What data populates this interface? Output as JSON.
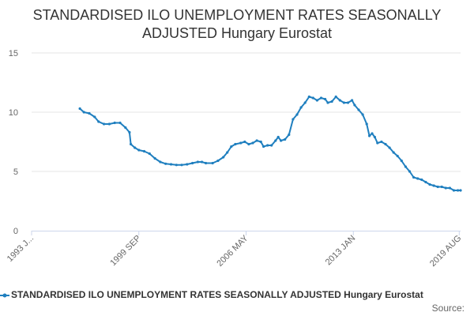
{
  "chart_data": {
    "type": "line",
    "title_lines": [
      "STANDARDISED ILO UNEMPLOYMENT RATES SEASONALLY",
      "ADJUSTED Hungary Eurostat"
    ],
    "xlabel": "",
    "ylabel": "",
    "x_range": [
      "1993-01",
      "2019-09"
    ],
    "ylim": [
      0,
      15
    ],
    "y_ticks": [
      0,
      5,
      10,
      15
    ],
    "x_ticks": [
      {
        "date": "1993-01",
        "label": "1993 J..."
      },
      {
        "date": "1999-09",
        "label": "1999 SEP"
      },
      {
        "date": "2006-05",
        "label": "2006 MAY"
      },
      {
        "date": "2013-01",
        "label": "2013 JAN"
      },
      {
        "date": "2019-08",
        "label": "2019 AUG"
      }
    ],
    "grid": "horizontal",
    "legend_position": "bottom-left",
    "series": [
      {
        "name": "STANDARDISED ILO UNEMPLOYMENT RATES SEASONALLY ADJUSTED Hungary Eurostat",
        "color": "#1f7fbf",
        "points": [
          [
            "1996-01",
            10.3
          ],
          [
            "1996-04",
            10.0
          ],
          [
            "1996-08",
            9.9
          ],
          [
            "1996-12",
            9.6
          ],
          [
            "1997-03",
            9.2
          ],
          [
            "1997-07",
            9.0
          ],
          [
            "1997-11",
            9.0
          ],
          [
            "1998-03",
            9.1
          ],
          [
            "1998-07",
            9.1
          ],
          [
            "1998-11",
            8.7
          ],
          [
            "1999-02",
            8.3
          ],
          [
            "1999-03",
            7.3
          ],
          [
            "1999-06",
            7.0
          ],
          [
            "1999-09",
            6.8
          ],
          [
            "2000-01",
            6.7
          ],
          [
            "2000-05",
            6.5
          ],
          [
            "2000-09",
            6.1
          ],
          [
            "2001-01",
            5.8
          ],
          [
            "2001-05",
            5.65
          ],
          [
            "2001-09",
            5.6
          ],
          [
            "2002-01",
            5.55
          ],
          [
            "2002-05",
            5.55
          ],
          [
            "2002-09",
            5.6
          ],
          [
            "2003-01",
            5.7
          ],
          [
            "2003-05",
            5.8
          ],
          [
            "2003-08",
            5.8
          ],
          [
            "2003-11",
            5.7
          ],
          [
            "2004-04",
            5.7
          ],
          [
            "2004-08",
            5.9
          ],
          [
            "2004-12",
            6.2
          ],
          [
            "2005-03",
            6.6
          ],
          [
            "2005-06",
            7.1
          ],
          [
            "2005-09",
            7.3
          ],
          [
            "2006-01",
            7.4
          ],
          [
            "2006-04",
            7.5
          ],
          [
            "2006-07",
            7.3
          ],
          [
            "2006-10",
            7.4
          ],
          [
            "2007-01",
            7.6
          ],
          [
            "2007-04",
            7.5
          ],
          [
            "2007-06",
            7.1
          ],
          [
            "2007-09",
            7.2
          ],
          [
            "2007-12",
            7.2
          ],
          [
            "2008-03",
            7.6
          ],
          [
            "2008-05",
            7.9
          ],
          [
            "2008-07",
            7.6
          ],
          [
            "2008-10",
            7.7
          ],
          [
            "2009-01",
            8.1
          ],
          [
            "2009-04",
            9.4
          ],
          [
            "2009-07",
            9.8
          ],
          [
            "2009-10",
            10.4
          ],
          [
            "2010-01",
            10.8
          ],
          [
            "2010-04",
            11.3
          ],
          [
            "2010-07",
            11.2
          ],
          [
            "2010-10",
            11.0
          ],
          [
            "2011-01",
            11.2
          ],
          [
            "2011-04",
            11.1
          ],
          [
            "2011-06",
            10.8
          ],
          [
            "2011-09",
            10.9
          ],
          [
            "2011-12",
            11.3
          ],
          [
            "2012-03",
            11.0
          ],
          [
            "2012-06",
            10.8
          ],
          [
            "2012-09",
            10.8
          ],
          [
            "2012-12",
            11.0
          ],
          [
            "2013-02",
            10.6
          ],
          [
            "2013-05",
            10.2
          ],
          [
            "2013-08",
            9.8
          ],
          [
            "2013-11",
            9.0
          ],
          [
            "2014-01",
            8.0
          ],
          [
            "2014-03",
            8.2
          ],
          [
            "2014-05",
            7.9
          ],
          [
            "2014-07",
            7.4
          ],
          [
            "2014-10",
            7.5
          ],
          [
            "2015-01",
            7.3
          ],
          [
            "2015-04",
            7.0
          ],
          [
            "2015-07",
            6.6
          ],
          [
            "2015-10",
            6.3
          ],
          [
            "2016-01",
            5.9
          ],
          [
            "2016-04",
            5.4
          ],
          [
            "2016-07",
            5.0
          ],
          [
            "2016-10",
            4.5
          ],
          [
            "2017-01",
            4.4
          ],
          [
            "2017-04",
            4.3
          ],
          [
            "2017-07",
            4.1
          ],
          [
            "2017-10",
            3.9
          ],
          [
            "2018-01",
            3.8
          ],
          [
            "2018-04",
            3.7
          ],
          [
            "2018-07",
            3.7
          ],
          [
            "2018-10",
            3.6
          ],
          [
            "2019-01",
            3.6
          ],
          [
            "2019-04",
            3.4
          ],
          [
            "2019-07",
            3.4
          ],
          [
            "2019-09",
            3.4
          ]
        ]
      }
    ]
  },
  "legend": {
    "label": "STANDARDISED ILO UNEMPLOYMENT RATES SEASONALLY ADJUSTED Hungary Eurostat"
  },
  "footer": {
    "source_label": "Source:"
  }
}
